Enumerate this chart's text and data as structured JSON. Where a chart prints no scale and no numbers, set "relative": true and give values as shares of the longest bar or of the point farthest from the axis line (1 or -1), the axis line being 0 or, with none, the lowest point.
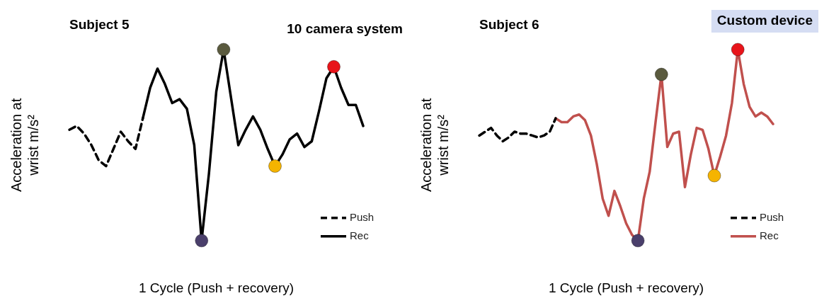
{
  "chart_data": [
    {
      "type": "line",
      "title": "Subject 5",
      "annotations": [
        "10 camera system"
      ],
      "xlabel": "1 Cycle (Push + recovery)",
      "ylabel": "Acceleration at wrist m/s²",
      "relative": true,
      "grid": false,
      "legend": "bottom right",
      "marker": "none",
      "categories": [
        null,
        null,
        null,
        null,
        null,
        null,
        null,
        null,
        null,
        null,
        null,
        null,
        null,
        null,
        null,
        null,
        null,
        null,
        null,
        null,
        null,
        null,
        null,
        null,
        null,
        null,
        null,
        null,
        null,
        null,
        null,
        null,
        null,
        null,
        null,
        null,
        null,
        null,
        null,
        null,
        null
      ],
      "series": [
        {
          "name": "Push",
          "color": "#000000",
          "line_style": "dashed",
          "values": [
            0.58,
            0.6,
            0.56,
            0.5,
            0.42,
            0.39,
            0.48,
            0.57,
            0.52,
            0.48,
            0.64,
            null,
            null,
            null,
            null,
            null,
            null,
            null,
            null,
            null,
            null,
            null,
            null,
            null,
            null,
            null,
            null,
            null,
            null,
            null,
            null,
            null,
            null,
            null,
            null,
            null,
            null,
            null,
            null,
            null,
            null
          ]
        },
        {
          "name": "Rec",
          "color": "#000000",
          "line_style": "solid",
          "values": [
            null,
            null,
            null,
            null,
            null,
            null,
            null,
            null,
            null,
            null,
            0.64,
            0.8,
            0.9,
            0.82,
            0.72,
            0.74,
            0.69,
            0.5,
            0.0,
            0.35,
            0.78,
            1.0,
            0.75,
            0.5,
            0.58,
            0.65,
            0.58,
            0.48,
            0.39,
            0.45,
            0.53,
            0.56,
            0.49,
            0.52,
            0.68,
            0.85,
            0.91,
            0.8,
            0.71,
            0.71,
            0.6
          ],
          "colors": [
            null,
            null,
            null,
            null,
            null,
            null,
            null,
            null,
            null,
            null,
            null,
            null,
            null,
            null,
            null,
            null,
            null,
            null,
            "#4a3f6b",
            null,
            null,
            "#5a5a3e",
            null,
            null,
            null,
            null,
            null,
            null,
            "#f5b400",
            null,
            null,
            null,
            null,
            null,
            null,
            null,
            "#e8141a",
            null,
            null,
            null,
            null
          ]
        }
      ]
    },
    {
      "type": "line",
      "title": "Subject 6",
      "annotations": [
        "Custom device"
      ],
      "xlabel": "1 Cycle (Push + recovery)",
      "ylabel": "Acceleration at wrist m/s²",
      "relative": true,
      "grid": false,
      "legend": "bottom right",
      "marker": "none",
      "categories": [
        null,
        null,
        null,
        null,
        null,
        null,
        null,
        null,
        null,
        null,
        null,
        null,
        null,
        null,
        null,
        null,
        null,
        null,
        null,
        null,
        null,
        null,
        null,
        null,
        null,
        null,
        null,
        null,
        null,
        null,
        null,
        null,
        null,
        null,
        null,
        null,
        null,
        null,
        null,
        null,
        null,
        null,
        null,
        null,
        null,
        null,
        null,
        null,
        null,
        null,
        null
      ],
      "series": [
        {
          "name": "Push",
          "color": "#000000",
          "line_style": "dashed",
          "values": [
            0.55,
            0.57,
            0.59,
            0.55,
            0.52,
            0.54,
            0.57,
            0.56,
            0.56,
            0.55,
            0.54,
            0.55,
            0.57,
            0.64,
            null,
            null,
            null,
            null,
            null,
            null,
            null,
            null,
            null,
            null,
            null,
            null,
            null,
            null,
            null,
            null,
            null,
            null,
            null,
            null,
            null,
            null,
            null,
            null,
            null,
            null,
            null,
            null,
            null,
            null,
            null,
            null,
            null,
            null,
            null,
            null,
            null
          ]
        },
        {
          "name": "Rec",
          "color": "#c0504d",
          "line_style": "solid",
          "values": [
            null,
            null,
            null,
            null,
            null,
            null,
            null,
            null,
            null,
            null,
            null,
            null,
            null,
            0.64,
            0.62,
            0.62,
            0.65,
            0.66,
            0.63,
            0.55,
            0.4,
            0.22,
            0.13,
            0.26,
            0.18,
            0.09,
            0.03,
            0.0,
            0.22,
            0.36,
            0.62,
            0.87,
            0.49,
            0.56,
            0.57,
            0.28,
            0.45,
            0.59,
            0.58,
            0.48,
            0.34,
            0.44,
            0.55,
            0.72,
            1.0,
            0.82,
            0.7,
            0.65,
            0.67,
            0.65,
            0.61
          ],
          "colors": [
            null,
            null,
            null,
            null,
            null,
            null,
            null,
            null,
            null,
            null,
            null,
            null,
            null,
            null,
            null,
            null,
            null,
            null,
            null,
            null,
            null,
            null,
            null,
            null,
            null,
            null,
            null,
            "#4a3f6b",
            null,
            null,
            null,
            "#5a5a3e",
            null,
            null,
            null,
            null,
            null,
            null,
            null,
            null,
            "#f5b400",
            null,
            null,
            null,
            "#e8141a",
            null,
            null,
            null,
            null,
            null,
            null
          ]
        }
      ]
    }
  ]
}
